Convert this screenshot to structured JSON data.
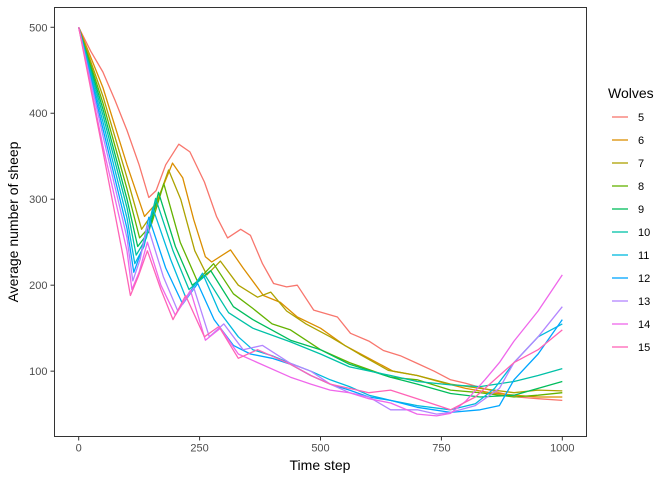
{
  "chart_data": {
    "type": "line",
    "title": "",
    "xlabel": "Time step",
    "ylabel": "Average number of sheep",
    "xlim": [
      -50,
      1050
    ],
    "ylim": [
      24,
      523
    ],
    "xticks": [
      0,
      250,
      500,
      750,
      1000
    ],
    "yticks": [
      100,
      200,
      300,
      400,
      500
    ],
    "grid": false,
    "legend": {
      "title": "Wolves",
      "placement": "right"
    },
    "series": [
      {
        "name": "5",
        "color": "#F8766D",
        "x": [
          0,
          25,
          50,
          75,
          100,
          125,
          145,
          160,
          180,
          207,
          230,
          260,
          285,
          308,
          335,
          355,
          380,
          403,
          430,
          452,
          486,
          535,
          562,
          600,
          630,
          665,
          700,
          735,
          769,
          800,
          837,
          870,
          907,
          950,
          1000
        ],
        "y": [
          500,
          472,
          448,
          415,
          380,
          340,
          302,
          310,
          340,
          364,
          355,
          320,
          280,
          255,
          265,
          258,
          225,
          202,
          198,
          200,
          171,
          163,
          144,
          135,
          124,
          118,
          109,
          100,
          90,
          86,
          80,
          75,
          70,
          68,
          66
        ]
      },
      {
        "name": "6",
        "color": "#DB8E00",
        "x": [
          0,
          50,
          100,
          136,
          160,
          194,
          215,
          238,
          262,
          275,
          314,
          340,
          382,
          417,
          452,
          500,
          550,
          600,
          650,
          700,
          750,
          800,
          850,
          900,
          950,
          1000
        ],
        "y": [
          500,
          430,
          340,
          280,
          295,
          342,
          325,
          276,
          233,
          227,
          241,
          220,
          188,
          180,
          163,
          150,
          130,
          115,
          100,
          95,
          87,
          80,
          75,
          72,
          70,
          70
        ]
      },
      {
        "name": "7",
        "color": "#AEA200",
        "x": [
          0,
          50,
          100,
          130,
          155,
          186,
          211,
          240,
          265,
          293,
          330,
          370,
          397,
          430,
          470,
          520,
          580,
          640,
          700,
          769,
          830,
          900,
          950,
          1000
        ],
        "y": [
          500,
          420,
          325,
          265,
          285,
          334,
          300,
          240,
          212,
          228,
          200,
          186,
          192,
          170,
          155,
          140,
          120,
          101,
          95,
          85,
          80,
          75,
          78,
          77
        ]
      },
      {
        "name": "8",
        "color": "#64B200",
        "x": [
          0,
          50,
          100,
          126,
          150,
          176,
          210,
          245,
          279,
          320,
          360,
          400,
          438,
          500,
          560,
          645,
          700,
          769,
          830,
          900,
          950,
          1000
        ],
        "y": [
          500,
          412,
          312,
          255,
          270,
          318,
          250,
          205,
          225,
          190,
          173,
          155,
          148,
          125,
          110,
          93,
          90,
          78,
          75,
          70,
          72,
          75
        ]
      },
      {
        "name": "9",
        "color": "#00BD5C",
        "x": [
          0,
          50,
          100,
          122,
          145,
          165,
          200,
          235,
          273,
          320,
          360,
          438,
          500,
          560,
          645,
          700,
          769,
          830,
          900,
          950,
          1000
        ],
        "y": [
          500,
          405,
          300,
          245,
          262,
          308,
          245,
          200,
          217,
          175,
          160,
          136,
          125,
          108,
          93,
          85,
          74,
          70,
          72,
          80,
          88
        ]
      },
      {
        "name": "10",
        "color": "#00C1A7",
        "x": [
          0,
          50,
          100,
          119,
          140,
          159,
          195,
          228,
          262,
          310,
          360,
          438,
          500,
          560,
          645,
          700,
          769,
          830,
          900,
          950,
          1000
        ],
        "y": [
          500,
          398,
          290,
          235,
          255,
          301,
          240,
          195,
          211,
          168,
          150,
          134,
          120,
          105,
          95,
          88,
          84,
          82,
          88,
          95,
          103
        ]
      },
      {
        "name": "11",
        "color": "#00BADE",
        "x": [
          0,
          50,
          100,
          116,
          135,
          153,
          190,
          222,
          256,
          290,
          330,
          360,
          400,
          438,
          480,
          520,
          560,
          600,
          645,
          700,
          769,
          820,
          860,
          900,
          950,
          1000
        ],
        "y": [
          500,
          390,
          278,
          225,
          245,
          290,
          230,
          185,
          214,
          170,
          140,
          125,
          118,
          109,
          100,
          90,
          82,
          72,
          66,
          60,
          55,
          62,
          80,
          110,
          140,
          155
        ]
      },
      {
        "name": "12",
        "color": "#00A6FF",
        "x": [
          0,
          50,
          100,
          114,
          130,
          145,
          180,
          215,
          246,
          280,
          320,
          355,
          400,
          438,
          480,
          520,
          560,
          600,
          645,
          700,
          769,
          830,
          870,
          900,
          950,
          1000
        ],
        "y": [
          500,
          382,
          266,
          215,
          240,
          279,
          220,
          178,
          202,
          160,
          130,
          120,
          115,
          108,
          95,
          85,
          78,
          70,
          66,
          58,
          52,
          55,
          60,
          90,
          120,
          160
        ]
      },
      {
        "name": "13",
        "color": "#B385FF",
        "x": [
          0,
          50,
          100,
          112,
          127,
          142,
          175,
          205,
          238,
          270,
          300,
          340,
          380,
          438,
          480,
          520,
          560,
          600,
          645,
          700,
          740,
          769,
          820,
          870,
          900,
          950,
          1000
        ],
        "y": [
          500,
          374,
          255,
          205,
          230,
          270,
          210,
          170,
          197,
          140,
          155,
          125,
          130,
          109,
          100,
          85,
          75,
          70,
          55,
          55,
          50,
          52,
          60,
          80,
          110,
          140,
          175
        ]
      },
      {
        "name": "14",
        "color": "#EF67EB",
        "x": [
          0,
          50,
          100,
          110,
          125,
          142,
          170,
          200,
          231,
          262,
          293,
          330,
          370,
          438,
          480,
          520,
          560,
          600,
          645,
          700,
          740,
          769,
          800,
          840,
          870,
          900,
          950,
          1000
        ],
        "y": [
          500,
          362,
          240,
          195,
          215,
          250,
          200,
          165,
          194,
          136,
          150,
          120,
          110,
          93,
          85,
          78,
          75,
          68,
          63,
          50,
          48,
          51,
          65,
          90,
          110,
          135,
          170,
          212
        ]
      },
      {
        "name": "15",
        "color": "#FF63B6",
        "x": [
          0,
          50,
          100,
          107,
          123,
          142,
          170,
          195,
          221,
          260,
          290,
          330,
          370,
          438,
          480,
          520,
          560,
          600,
          645,
          700,
          769,
          820,
          870,
          900,
          950,
          1000
        ],
        "y": [
          500,
          356,
          210,
          188,
          210,
          240,
          195,
          160,
          188,
          140,
          152,
          115,
          125,
          108,
          95,
          85,
          80,
          75,
          78,
          68,
          55,
          70,
          95,
          110,
          125,
          148
        ]
      }
    ]
  }
}
